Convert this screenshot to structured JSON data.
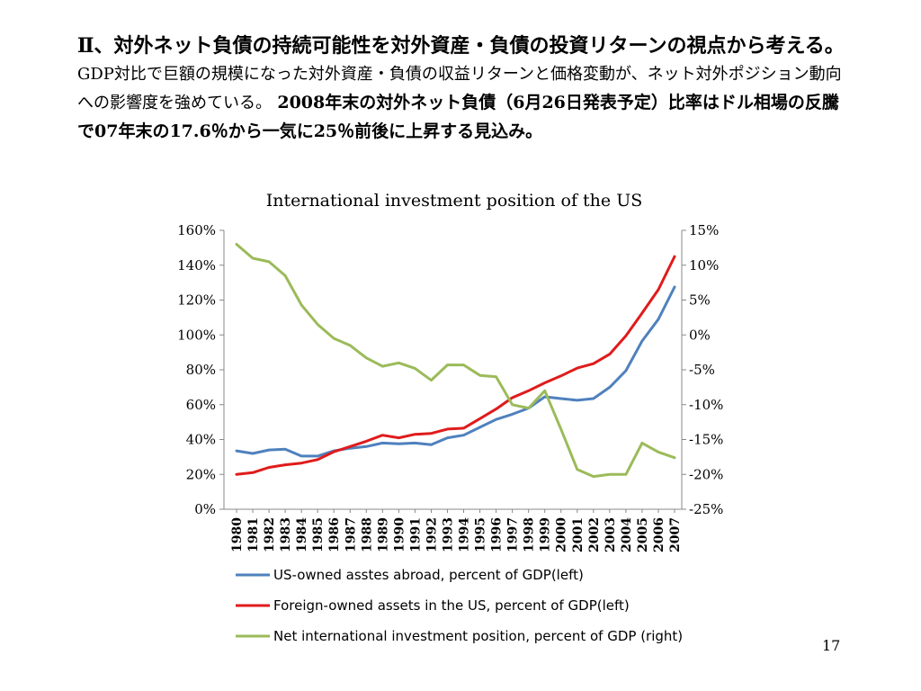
{
  "header": {
    "part1": "Ⅱ、対外ネット負債の持続可能性を対外資産・負債の投資リターンの視点から考える。",
    "part2": "GDP対比で巨額の規模になった対外資産・負債の収益リターンと価格変動が、ネット対外ポジション動向への影響度を強めている。",
    "part3": "2008年末の対外ネット負債（6月26日発表予定）比率はドル相場の反騰で07年末の17.6％から一気に25％前後に上昇する見込み。"
  },
  "page_number": "17",
  "colors": {
    "us_owned": "#4f81bd",
    "foreign_owned": "#e01b1b",
    "net": "#9bbb59"
  },
  "chart_data": {
    "type": "line",
    "title": "International investment position of the US",
    "x": [
      "1980",
      "1981",
      "1982",
      "1983",
      "1984",
      "1985",
      "1986",
      "1987",
      "1988",
      "1989",
      "1990",
      "1991",
      "1992",
      "1993",
      "1994",
      "1995",
      "1996",
      "1997",
      "1998",
      "1999",
      "2000",
      "2001",
      "2002",
      "2003",
      "2004",
      "2005",
      "2006",
      "2007"
    ],
    "left_axis": {
      "min": 0,
      "max": 160,
      "ticks": [
        "0%",
        "20%",
        "40%",
        "60%",
        "80%",
        "100%",
        "120%",
        "140%",
        "160%"
      ]
    },
    "right_axis": {
      "min": -25,
      "max": 15,
      "ticks": [
        "-25%",
        "-20%",
        "-15%",
        "-10%",
        "-5%",
        "0%",
        "5%",
        "10%",
        "15%"
      ]
    },
    "grid": false,
    "legend_position": "bottom",
    "series": [
      {
        "name": "US-owned asstes abroad, percent of GDP(left)",
        "axis": "left",
        "values": [
          33.5,
          32,
          34,
          34.5,
          30.5,
          30.5,
          33.5,
          35,
          36,
          38,
          37.5,
          38,
          37,
          41,
          42.5,
          47,
          51.5,
          54.5,
          58,
          64.5,
          63.5,
          62.5,
          63.5,
          70,
          79.5,
          96.5,
          109,
          127.5
        ]
      },
      {
        "name": "Foreign-owned assets in the US, percent of GDP(left)",
        "axis": "left",
        "values": [
          20,
          21,
          24,
          25.5,
          26.5,
          28.5,
          33,
          36,
          39,
          42.5,
          41,
          43,
          43.5,
          46,
          46.5,
          52,
          57.5,
          64,
          68,
          72.5,
          76.5,
          81,
          83.5,
          89,
          99.5,
          112.5,
          126,
          145
        ]
      },
      {
        "name": "Net international investment position, percent of GDP (right)",
        "axis": "right",
        "values": [
          13,
          11,
          10.5,
          8.5,
          4.3,
          1.5,
          -0.5,
          -1.5,
          -3.3,
          -4.5,
          -4,
          -4.8,
          -6.5,
          -4.3,
          -4.3,
          -5.8,
          -6,
          -10,
          -10.5,
          -8,
          -13.5,
          -19.3,
          -20.3,
          -20,
          -20,
          -15.5,
          -16.8,
          -17.6
        ]
      }
    ]
  }
}
